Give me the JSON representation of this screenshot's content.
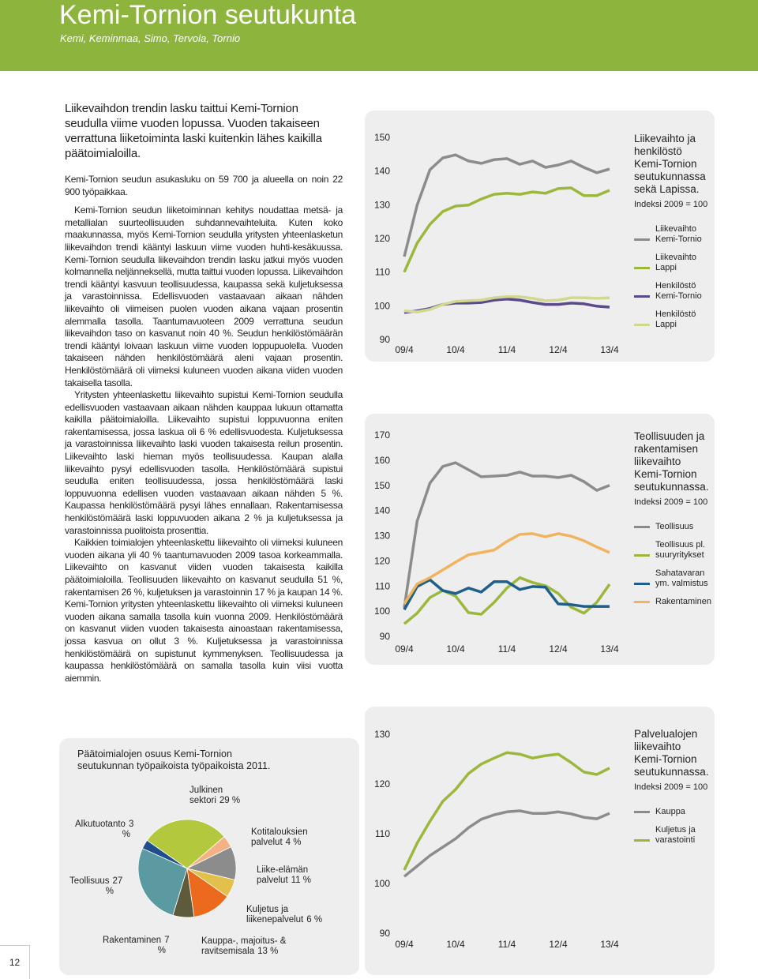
{
  "header": {
    "title": "Kemi-Tornion seutukunta",
    "subtitle": "Kemi, Keminmaa, Simo, Tervola, Tornio"
  },
  "body": {
    "lead": "Liikevaihdon trendin lasku taittui Kemi-Tornion seudulla viime vuoden lopussa. Vuoden takaiseen verrattuna liiketoiminta laski kuitenkin lähes kaikilla päätoimialoilla.",
    "paragraphs": [
      "Kemi-Tornion seudun asukasluku on 59 700 ja alueella on noin 22 900 työpaikkaa.",
      "Kemi-Tornion seudun liiketoiminnan kehitys noudattaa metsä- ja metallialan suurteollisuuden suhdannevaihteluita. Kuten koko maakunnassa, myös Kemi-Tornion seudulla yritysten yhteenlasketun liikevaihdon trendi kääntyi laskuun viime vuoden huhti-kesäkuussa. Kemi-Tornion seudulla liikevaihdon trendin lasku jatkui myös vuoden kolmannella neljänneksellä, mutta taittui vuoden lopussa. Liikevaihdon trendi kääntyi kasvuun teollisuudessa, kaupassa sekä kuljetuksessa ja varastoinnissa. Edellisvuoden vastaavaan aikaan nähden liikevaihto oli viimeisen puolen vuoden aikana vajaan prosentin alemmalla tasolla. Taantumavuoteen 2009 verrattuna seudun liikevaihdon taso on kasvanut noin 40 %. Seudun henkilöstömäärän trendi kääntyi loivaan laskuun viime vuoden loppupuolella. Vuoden takaiseen nähden henkilöstömäärä aleni vajaan prosentin. Henkilöstömäärä oli viimeksi kuluneen vuoden aikana viiden vuoden takaisella tasolla.",
      "Yritysten yhteenlaskettu liikevaihto supistui Kemi-Tornion seudulla edellisvuoden vastaavaan aikaan nähden kauppaa lukuun ottamatta kaikilla päätoimialoilla. Liikevaihto supistui loppuvuonna eniten rakentamisessa, jossa laskua oli 6 % edellisvuodesta. Kuljetuksessa ja varastoinnissa liikevaihto laski vuoden takaisesta reilun prosentin. Liikevaihto laski hieman myös teollisuudessa. Kaupan alalla liikevaihto pysyi edellisvuoden tasolla. Henkilöstömäärä supistui seudulla eniten teollisuudessa, jossa henkilöstömäärä laski loppuvuonna edellisen vuoden vastaavaan aikaan nähden 5 %. Kaupassa henkilöstömäärä pysyi lähes ennallaan. Rakentamisessa henkilöstömäärä laski loppuvuoden aikana 2 % ja kuljetuksessa ja varastoinnissa puolitoista prosenttia.",
      "Kaikkien toimialojen yhteenlaskettu liikevaihto oli viimeksi kuluneen vuoden aikana yli 40 % taantumavuoden 2009 tasoa korkeammalla. Liikevaihto on kasvanut viiden vuoden takaisesta kaikilla päätoimialoilla. Teollisuuden liikevaihto on kasvanut seudulla 51 %, rakentamisen 26 %, kuljetuksen ja varastoinnin 17 % ja kaupan 14 %. Kemi-Tornion yritysten yhteenlaskettu liikevaihto oli viimeksi kuluneen vuoden aikana samalla tasolla kuin vuonna 2009. Henkilöstömäärä on kasvanut viiden vuoden takaisesta ainoastaan rakentamisessa, jossa kasvua on ollut 3 %. Kuljetuksessa ja varastoinnissa henkilöstömäärä on supistunut kymmenyksen. Teollisuudessa ja kaupassa henkilöstömäärä on samalla tasolla kuin viisi vuotta aiemmin."
    ]
  },
  "page_number": "12",
  "chart_data": [
    {
      "type": "line",
      "title": "Liikevaihto ja henkilöstö Kemi-Tornion seutukunnassa sekä Lapissa.",
      "subtitle": "Indeksi 2009 = 100",
      "categories": [
        "09/4",
        null,
        null,
        null,
        "10/4",
        null,
        null,
        null,
        "11/4",
        null,
        null,
        null,
        "12/4",
        null,
        null,
        null,
        "13/4"
      ],
      "ylim": [
        90,
        150
      ],
      "yticks": [
        90,
        100,
        110,
        120,
        130,
        140,
        150
      ],
      "series": [
        {
          "name": "Liikevaihto Kemi-Tornio",
          "color": "#8c8c8c",
          "values": [
            114.6,
            129.9,
            140.4,
            143.9,
            144.8,
            143,
            142.3,
            143.4,
            143.7,
            142,
            143,
            141.1,
            141.8,
            143,
            141.1,
            139.5,
            140.6
          ]
        },
        {
          "name": "Liikevaihto Lappi",
          "color": "#9cb83c",
          "values": [
            110,
            118.6,
            124.2,
            128,
            129.6,
            129.9,
            131.7,
            133.1,
            133.4,
            133.1,
            133.8,
            133.4,
            134.8,
            135,
            132.7,
            132.7,
            134.3
          ]
        },
        {
          "name": "Henkilöstö Kemi-Tornio",
          "color": "#5a4a8c",
          "values": [
            98,
            98.5,
            99.2,
            100.4,
            100.8,
            100.8,
            101,
            101.7,
            102,
            101.7,
            101,
            100.4,
            100.4,
            100.8,
            100.6,
            99.9,
            99.6
          ]
        },
        {
          "name": "Henkilöstö Lappi",
          "color": "#d2d890",
          "values": [
            98.5,
            98.2,
            98.9,
            100.4,
            101.3,
            101.5,
            101.7,
            102.4,
            102.7,
            102.7,
            102.2,
            101.5,
            101.7,
            102.4,
            102.4,
            102.2,
            102.4
          ]
        }
      ]
    },
    {
      "type": "line",
      "title": "Teollisuuden ja rakentamisen liikevaihto Kemi-Tornion seutukunnassa.",
      "subtitle": "Indeksi 2009 = 100",
      "categories": [
        "09/4",
        null,
        null,
        null,
        "10/4",
        null,
        null,
        null,
        "11/4",
        null,
        null,
        null,
        "12/4",
        null,
        null,
        null,
        "13/4"
      ],
      "ylim": [
        90,
        170
      ],
      "yticks": [
        90,
        100,
        110,
        120,
        130,
        140,
        150,
        160,
        170
      ],
      "series": [
        {
          "name": "Teollisuus",
          "color": "#8c8c8c",
          "values": [
            101.3,
            135.8,
            150.9,
            157.5,
            159,
            156.2,
            153.4,
            153.7,
            154,
            155.3,
            153.7,
            153.7,
            153.1,
            154,
            151.5,
            148,
            150
          ]
        },
        {
          "name": "Teollisuus pl. suuryritykset",
          "color": "#9cb83c",
          "values": [
            95,
            99.2,
            105.4,
            108.2,
            106,
            99.4,
            98.8,
            103.5,
            109.2,
            113.3,
            111.4,
            110.1,
            107,
            101.6,
            99.2,
            103.5,
            110.7
          ]
        },
        {
          "name": "Sahatavaran ym. valmistus",
          "color": "#1f5f8b",
          "values": [
            100.6,
            109.8,
            112.5,
            108.2,
            107,
            109.2,
            107.6,
            111.7,
            111.7,
            108.6,
            109.8,
            109.5,
            102.9,
            102.6,
            101.9,
            101.9,
            101.9
          ]
        },
        {
          "name": "Rakentaminen",
          "color": "#f2b35f",
          "values": [
            102.9,
            110.8,
            113.3,
            116.4,
            119.5,
            122.4,
            123.3,
            124.3,
            127.7,
            130.5,
            130.8,
            129.6,
            130.8,
            129.8,
            128,
            125.5,
            123.3
          ]
        }
      ]
    },
    {
      "type": "line",
      "title": "Palvelualojen liikevaihto Kemi-Tornion seutukunnassa.",
      "subtitle": "Indeksi 2009 = 100",
      "categories": [
        "09/4",
        null,
        null,
        null,
        "10/4",
        null,
        null,
        null,
        "11/4",
        null,
        null,
        null,
        "12/4",
        null,
        null,
        null,
        "13/4"
      ],
      "ylim": [
        90,
        130
      ],
      "yticks": [
        90,
        100,
        110,
        120,
        130
      ],
      "series": [
        {
          "name": "Kauppa",
          "color": "#8c8c8c",
          "values": [
            101.4,
            103.5,
            105.6,
            107.3,
            109,
            111.2,
            112.9,
            113.8,
            114.4,
            114.6,
            114.1,
            114.1,
            114.4,
            114,
            113.3,
            113,
            114.1
          ]
        },
        {
          "name": "Kuljetus ja varastointi",
          "color": "#9cb83c",
          "values": [
            102.7,
            108.1,
            112.5,
            116.5,
            118.9,
            122.1,
            124,
            125.2,
            126.3,
            126,
            125.2,
            125.7,
            126,
            124.3,
            122.4,
            121.9,
            123.2
          ]
        }
      ]
    },
    {
      "type": "pie",
      "title": "Päätoimialojen osuus Kemi-Tornion seutukunnan työpaikoista työpaikoista 2011.",
      "categories": [
        "Julkinen sektori",
        "Kotitalouksien palvelut",
        "Liike-elämän palvelut",
        "Kuljetus ja liikenepalvelut",
        "Kauppa-, majoitus- & ravitsemisala",
        "Rakentaminen",
        "Teollisuus",
        "Alkutuotanto"
      ],
      "values": [
        29,
        4,
        11,
        6,
        13,
        7,
        27,
        3
      ],
      "value_labels": [
        "29 %",
        "4 %",
        "11 %",
        "6 %",
        "13 %",
        "7 %",
        "27 %",
        "3 %"
      ],
      "colors": [
        "#b3c83c",
        "#f4b183",
        "#8c8c8c",
        "#e3c04c",
        "#ec6a1e",
        "#5e5a3c",
        "#5a9aa0",
        "#1f4e8c"
      ]
    }
  ]
}
